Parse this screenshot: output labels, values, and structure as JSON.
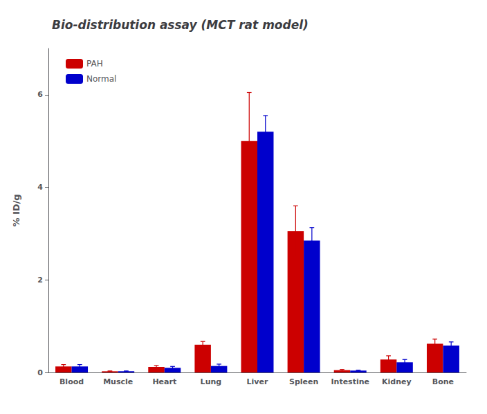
{
  "chart_data": {
    "type": "bar",
    "title": "Bio-distribution assay (MCT rat model)",
    "ylabel": "% ID/g",
    "categories": [
      "Blood",
      "Muscle",
      "Heart",
      "Lung",
      "Liver",
      "Spleen",
      "Intestine",
      "Kidney",
      "Bone"
    ],
    "series": [
      {
        "name": "PAH",
        "color": "#CC0000",
        "values": [
          0.13,
          0.025,
          0.12,
          0.6,
          5.0,
          3.05,
          0.05,
          0.28,
          0.62
        ],
        "errors": [
          0.04,
          0.008,
          0.03,
          0.07,
          1.05,
          0.55,
          0.015,
          0.08,
          0.1
        ]
      },
      {
        "name": "Normal",
        "color": "#0000CC",
        "values": [
          0.13,
          0.025,
          0.1,
          0.14,
          5.2,
          2.85,
          0.04,
          0.22,
          0.58
        ],
        "errors": [
          0.04,
          0.008,
          0.03,
          0.04,
          0.35,
          0.28,
          0.01,
          0.06,
          0.08
        ]
      }
    ],
    "ylim": [
      0,
      7
    ],
    "yticks": [
      0,
      2,
      4,
      6
    ],
    "grid": false,
    "legend": "upper left"
  }
}
